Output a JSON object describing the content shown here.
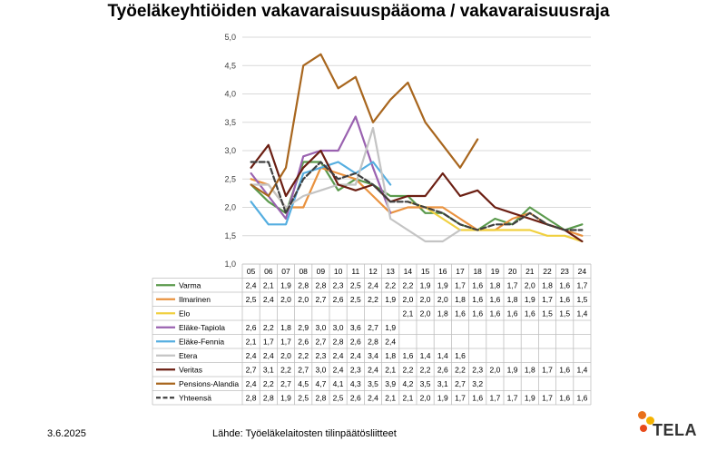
{
  "title": "Työeläkeyhtiöiden vakavaraisuuspääoma / vakavaraisuusraja",
  "footer": {
    "date": "3.6.2025",
    "source": "Lähde: Työeläkelaitosten tilinpäätösliitteet"
  },
  "logo": {
    "text": "TELA",
    "colors": [
      "#e8701a",
      "#f5b300",
      "#e84a1a"
    ]
  },
  "chart_data": {
    "type": "line",
    "title": "Työeläkeyhtiöiden vakavaraisuuspääoma / vakavaraisuusraja",
    "categories": [
      "05",
      "06",
      "07",
      "08",
      "09",
      "10",
      "11",
      "12",
      "13",
      "14",
      "15",
      "16",
      "17",
      "18",
      "19",
      "20",
      "21",
      "22",
      "23",
      "24"
    ],
    "ylim": [
      1.0,
      5.0
    ],
    "yticks": [
      "1,0",
      "1,5",
      "2,0",
      "2,5",
      "3,0",
      "3,5",
      "4,0",
      "4,5",
      "5,0"
    ],
    "grid": true,
    "legend": "data-table",
    "series": [
      {
        "name": "Varma",
        "color": "#5b9a4d",
        "dashed": false,
        "values": [
          2.4,
          2.1,
          1.9,
          2.8,
          2.8,
          2.3,
          2.5,
          2.4,
          2.2,
          2.2,
          1.9,
          1.9,
          1.7,
          1.6,
          1.8,
          1.7,
          2.0,
          1.8,
          1.6,
          1.7
        ]
      },
      {
        "name": "Ilmarinen",
        "color": "#e9923f",
        "dashed": false,
        "values": [
          2.5,
          2.4,
          2.0,
          2.0,
          2.7,
          2.6,
          2.5,
          2.2,
          1.9,
          2.0,
          2.0,
          2.0,
          1.8,
          1.6,
          1.6,
          1.8,
          1.9,
          1.7,
          1.6,
          1.5
        ]
      },
      {
        "name": "Elo",
        "color": "#f0d040",
        "dashed": false,
        "values": [
          null,
          null,
          null,
          null,
          null,
          null,
          null,
          null,
          null,
          2.1,
          2.0,
          1.8,
          1.6,
          1.6,
          1.6,
          1.6,
          1.6,
          1.5,
          1.5,
          1.4
        ]
      },
      {
        "name": "Eläke-Tapiola",
        "color": "#9a62b0",
        "dashed": false,
        "values": [
          2.6,
          2.2,
          1.8,
          2.9,
          3.0,
          3.0,
          3.6,
          2.7,
          1.9,
          null,
          null,
          null,
          null,
          null,
          null,
          null,
          null,
          null,
          null,
          null
        ]
      },
      {
        "name": "Eläke-Fennia",
        "color": "#55aee0",
        "dashed": false,
        "values": [
          2.1,
          1.7,
          1.7,
          2.6,
          2.7,
          2.8,
          2.6,
          2.8,
          2.4,
          null,
          null,
          null,
          null,
          null,
          null,
          null,
          null,
          null,
          null,
          null
        ]
      },
      {
        "name": "Etera",
        "color": "#c4c4c4",
        "dashed": false,
        "values": [
          2.4,
          2.4,
          2.0,
          2.2,
          2.3,
          2.4,
          2.4,
          3.4,
          1.8,
          1.6,
          1.4,
          1.4,
          1.6,
          null,
          null,
          null,
          null,
          null,
          null,
          null
        ]
      },
      {
        "name": "Veritas",
        "color": "#6b1e12",
        "dashed": false,
        "values": [
          2.7,
          3.1,
          2.2,
          2.7,
          3.0,
          2.4,
          2.3,
          2.4,
          2.1,
          2.2,
          2.2,
          2.6,
          2.2,
          2.3,
          2.0,
          1.9,
          1.8,
          1.7,
          1.6,
          1.4
        ]
      },
      {
        "name": "Pensions-Alandia",
        "color": "#a8661e",
        "dashed": false,
        "values": [
          2.4,
          2.2,
          2.7,
          4.5,
          4.7,
          4.1,
          4.3,
          3.5,
          3.9,
          4.2,
          3.5,
          3.1,
          2.7,
          3.2,
          null,
          null,
          null,
          null,
          null,
          null
        ]
      },
      {
        "name": "Yhteensä",
        "color": "#404040",
        "dashed": true,
        "values": [
          2.8,
          2.8,
          1.9,
          2.5,
          2.8,
          2.5,
          2.6,
          2.4,
          2.1,
          2.1,
          2.0,
          1.9,
          1.7,
          1.6,
          1.7,
          1.7,
          1.9,
          1.7,
          1.6,
          1.6
        ]
      }
    ]
  }
}
